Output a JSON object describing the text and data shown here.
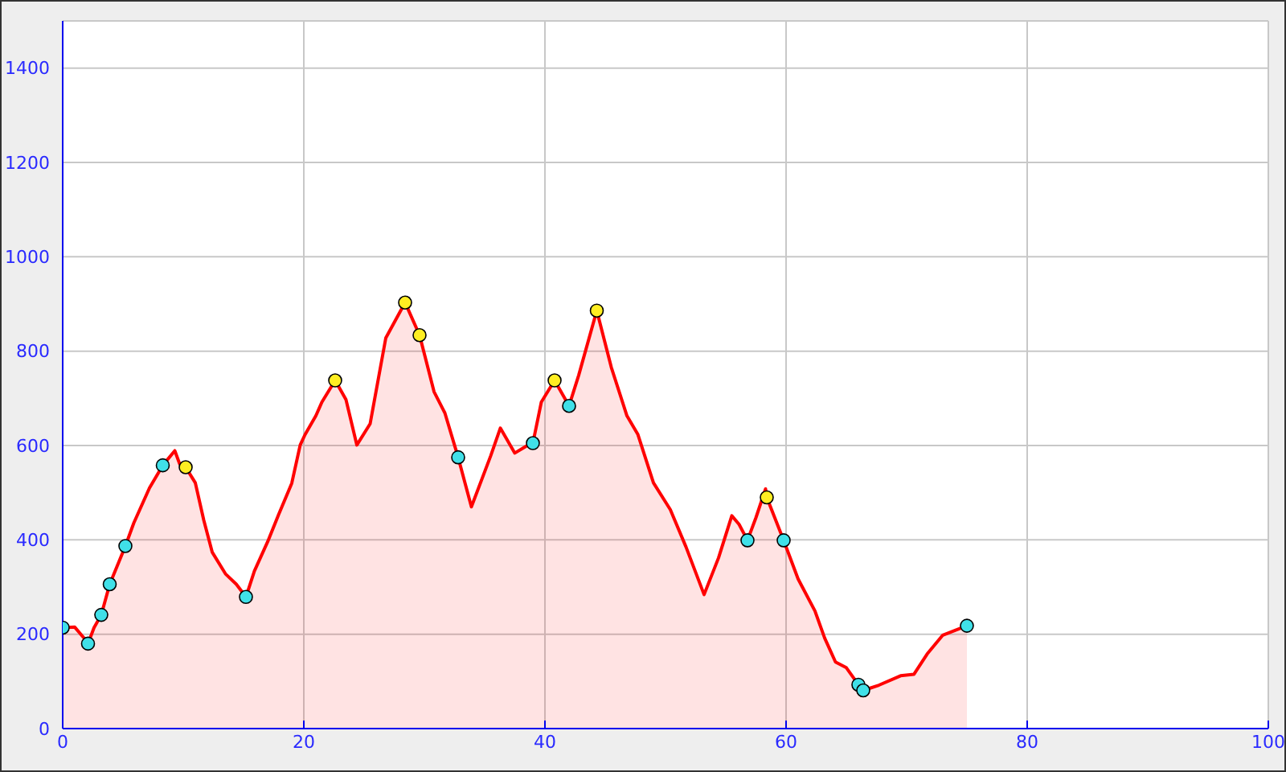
{
  "chart_data": {
    "type": "area",
    "series": [
      {
        "color": "#ff0000",
        "x": [
          0,
          1.0,
          1.7,
          2.1,
          2.6,
          3.2,
          3.9,
          5.2,
          5.9,
          7.2,
          8.3,
          9.3,
          9.7,
          10.2,
          11.0,
          11.7,
          12.4,
          13.5,
          14.4,
          15.2,
          15.9,
          17.0,
          17.9,
          19.0,
          19.7,
          20.1,
          21.0,
          21.5,
          22.6,
          23.5,
          24.4,
          25.5,
          26.8,
          28.4,
          29.6,
          30.8,
          31.7,
          32.8,
          33.9,
          35.5,
          36.3,
          37.5,
          38.4,
          39.0,
          39.7,
          40.8,
          42.0,
          42.8,
          44.3,
          45.5,
          46.8,
          47.7,
          49.0,
          50.4,
          51.7,
          53.2,
          54.4,
          55.5,
          56.1,
          56.8,
          57.5,
          58.3,
          58.4,
          59.8,
          61.0,
          62.4,
          63.2,
          64.1,
          65.0,
          66.0,
          66.4,
          67.7,
          69.5,
          70.6,
          71.7,
          73.0,
          75.0
        ],
        "values": [
          214,
          215,
          194,
          180,
          214,
          241,
          306,
          387,
          436,
          510,
          558,
          589,
          561,
          554,
          521,
          442,
          374,
          328,
          306,
          279,
          334,
          396,
          453,
          520,
          601,
          623,
          663,
          692,
          738,
          697,
          601,
          646,
          828,
          903,
          834,
          714,
          669,
          575,
          470,
          578,
          637,
          584,
          598,
          605,
          692,
          738,
          684,
          749,
          886,
          766,
          663,
          624,
          521,
          464,
          385,
          284,
          362,
          451,
          433,
          399,
          447,
          508,
          490,
          399,
          317,
          249,
          192,
          141,
          129,
          93,
          81,
          92,
          112,
          115,
          158,
          198,
          218
        ]
      },
      {
        "type": "scatter",
        "color": "#40e0e8",
        "marker": "circle",
        "x": [
          0,
          2.1,
          3.2,
          3.9,
          5.2,
          8.3,
          15.2,
          32.8,
          39.0,
          42.0,
          56.8,
          59.8,
          66.0,
          66.4,
          75.0
        ],
        "values": [
          214,
          180,
          241,
          306,
          387,
          558,
          279,
          575,
          605,
          684,
          399,
          399,
          93,
          81,
          218
        ]
      },
      {
        "type": "scatter",
        "color": "#ffee22",
        "marker": "circle",
        "x": [
          10.2,
          22.6,
          28.4,
          29.6,
          40.8,
          44.3,
          58.4
        ],
        "values": [
          554,
          738,
          903,
          834,
          738,
          886,
          490
        ]
      }
    ],
    "xlim": [
      0,
      100
    ],
    "xticks": [
      0,
      20,
      40,
      60,
      80,
      100
    ],
    "ylim": [
      0,
      1500
    ],
    "yticks": [
      0,
      200,
      400,
      600,
      800,
      1000,
      1200,
      1400
    ],
    "grid": true
  }
}
